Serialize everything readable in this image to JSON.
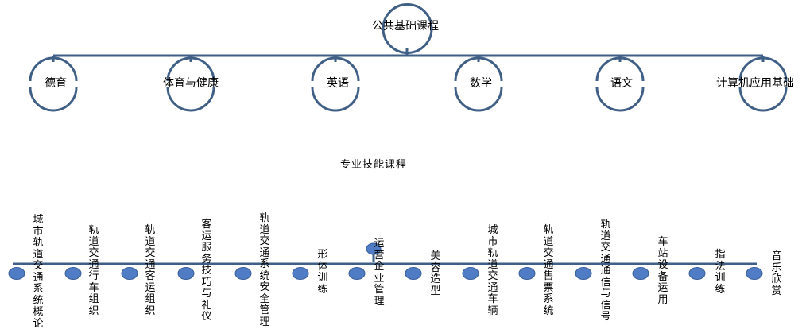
{
  "root": {
    "label": "公共基础课程"
  },
  "children": [
    {
      "label": "德育"
    },
    {
      "label": "体育与健康"
    },
    {
      "label": "英语"
    },
    {
      "label": "数学"
    },
    {
      "label": "语文"
    },
    {
      "label": "计算机应用基础"
    }
  ],
  "skills_title": "专业技能课程",
  "skills": [
    {
      "label": "城市轨道交通系统概论"
    },
    {
      "label": "轨道交通行车组织"
    },
    {
      "label": "轨道交通客运组织"
    },
    {
      "label": "客运服务技巧与礼仪"
    },
    {
      "label": "轨道交通系统安全管理"
    },
    {
      "label": "形体训练"
    },
    {
      "label": "运营企业管理"
    },
    {
      "label": "美容造型"
    },
    {
      "label": "城市轨道交通车辆"
    },
    {
      "label": "轨道交通售票系统"
    },
    {
      "label": "轨道交通通信与信号"
    },
    {
      "label": "车站设备运用"
    },
    {
      "label": "指法训练"
    },
    {
      "label": "音乐欣赏"
    }
  ],
  "colors": {
    "line": "#3f5f86",
    "dot": "#4f7cc4",
    "dot_stroke": "#3b5f99"
  }
}
